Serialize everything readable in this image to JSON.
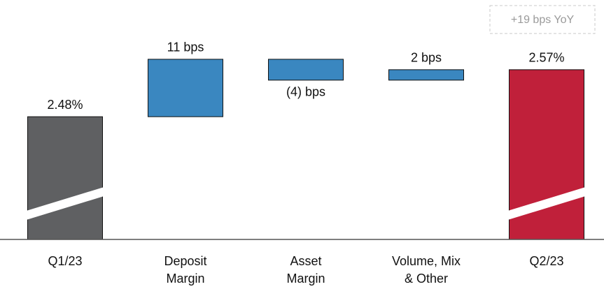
{
  "chart_data": {
    "type": "waterfall",
    "annotation": "+19 bps YoY",
    "categories": [
      [
        "Q1/23"
      ],
      [
        "Deposit",
        "Margin"
      ],
      [
        "Asset",
        "Margin"
      ],
      [
        "Volume, Mix",
        "& Other"
      ],
      [
        "Q2/23"
      ]
    ],
    "measures": [
      "total",
      "relative",
      "relative",
      "relative",
      "total"
    ],
    "values": [
      2.48,
      0.11,
      -0.04,
      0.02,
      2.57
    ],
    "value_labels": [
      "2.48%",
      "11 bps",
      "(4) bps",
      "2 bps",
      "2.57%"
    ],
    "colors": [
      "#5f6062",
      "#3a87c0",
      "#3a87c0",
      "#3a87c0",
      "#c0203a"
    ],
    "ylim": [
      2.245,
      2.65
    ]
  }
}
